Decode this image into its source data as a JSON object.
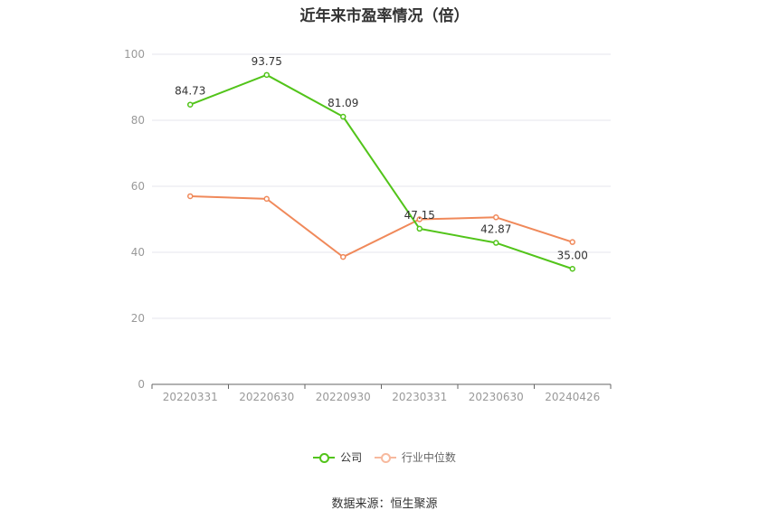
{
  "chart_data": {
    "type": "line",
    "title": "近年来市盈率情况（倍）",
    "categories": [
      "20220331",
      "20220630",
      "20220930",
      "20230331",
      "20230630",
      "20240426"
    ],
    "ylim": [
      0,
      100
    ],
    "yticks": [
      0,
      20,
      40,
      60,
      80,
      100
    ],
    "grid": true,
    "legend_position": "bottom",
    "series": [
      {
        "name": "公司",
        "color": "#52c41a",
        "values": [
          84.73,
          93.75,
          81.09,
          47.15,
          42.87,
          35.0
        ],
        "labels": [
          "84.73",
          "93.75",
          "81.09",
          "47.15",
          "42.87",
          "35.00"
        ]
      },
      {
        "name": "行业中位数",
        "color": "#f0895a",
        "values": [
          57.0,
          56.2,
          38.6,
          50.0,
          50.6,
          43.1
        ]
      }
    ]
  },
  "source": "数据来源：恒生聚源"
}
